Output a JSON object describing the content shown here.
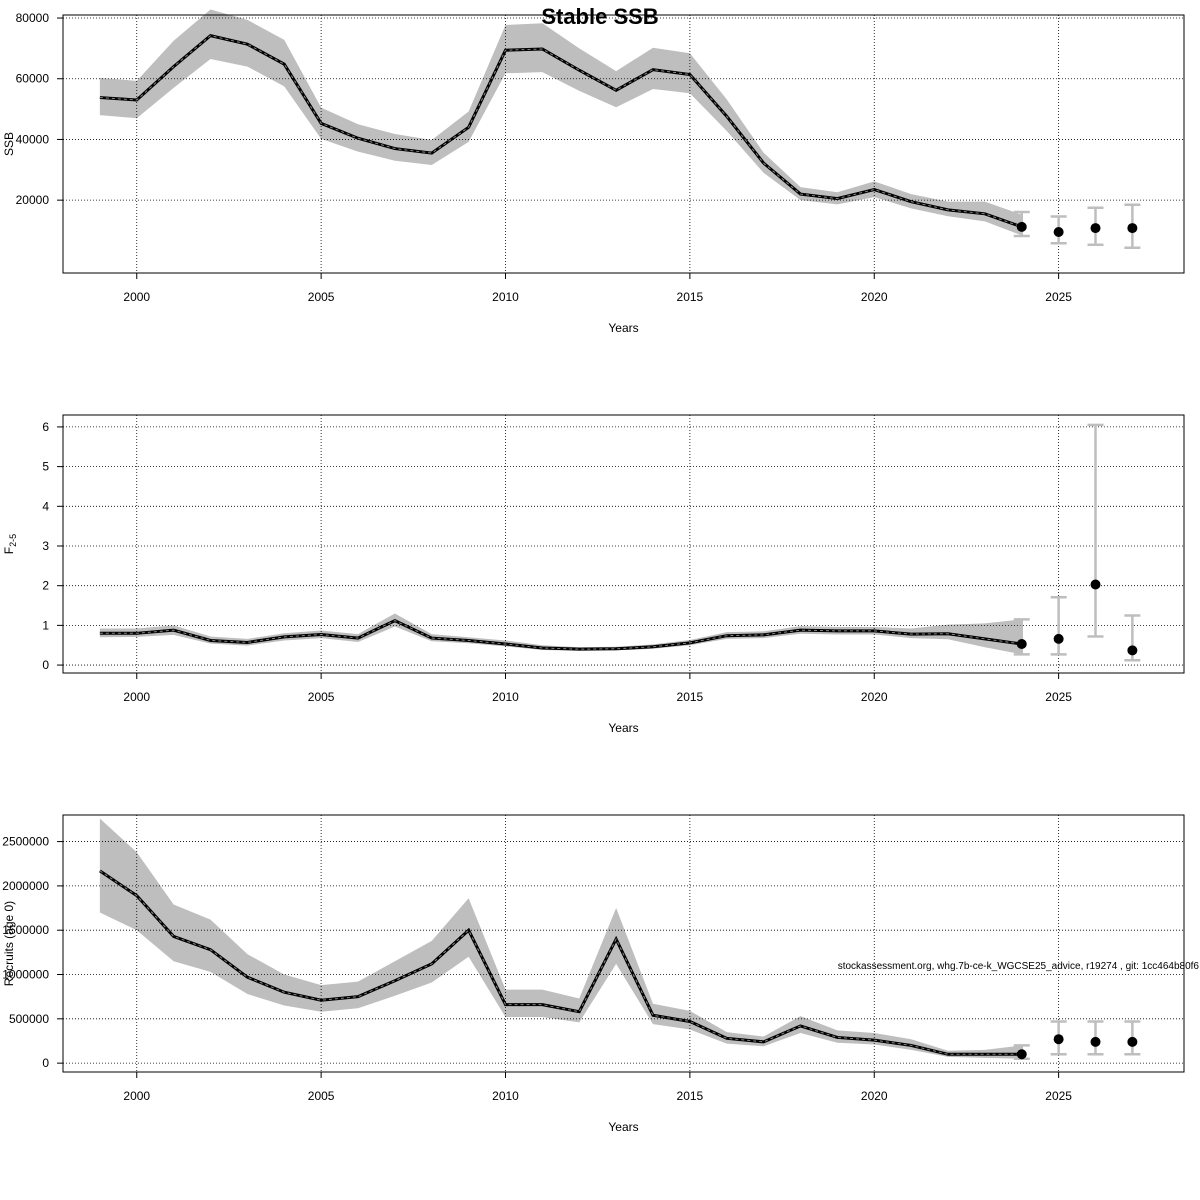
{
  "title": "Stable SSB",
  "footnote": "stockassessment.org, whg.7b-ce-k_WGCSE25_advice, r19274 , git: 1cc464b80f6",
  "colors": {
    "band": "#bebebe",
    "line": "#000000",
    "errorbar": "#bebebe",
    "grid": "#000000"
  },
  "chart_data": [
    {
      "type": "line",
      "ylabel": "SSB",
      "xlabel": "Years",
      "xlim": [
        1998,
        2028.4
      ],
      "ylim": [
        -4000,
        81000
      ],
      "x_ticks": [
        2000,
        2005,
        2010,
        2015,
        2020,
        2025
      ],
      "y_ticks": [
        20000,
        40000,
        60000,
        80000
      ],
      "y_tick_labels": [
        "20000",
        "40000",
        "60000",
        "80000"
      ],
      "series": [
        {
          "x": [
            1999,
            2000,
            2001,
            2002,
            2003,
            2004,
            2005,
            2006,
            2007,
            2008,
            2009,
            2010,
            2011,
            2012,
            2013,
            2014,
            2015,
            2016,
            2017,
            2018,
            2019,
            2020,
            2021,
            2022,
            2023,
            2024
          ],
          "y": [
            53800,
            53000,
            64000,
            74200,
            71400,
            64800,
            45300,
            40400,
            37000,
            35500,
            44000,
            69400,
            69800,
            62800,
            56200,
            63000,
            61400,
            47600,
            32200,
            22000,
            20500,
            23500,
            19500,
            16800,
            15500,
            11200
          ],
          "lower": [
            48000,
            47000,
            57000,
            66500,
            64000,
            57500,
            40200,
            36000,
            33000,
            31600,
            39200,
            61800,
            62200,
            56000,
            50600,
            56600,
            55200,
            42800,
            29000,
            20000,
            18600,
            21000,
            17300,
            14700,
            13000,
            8400
          ],
          "upper": [
            60300,
            59300,
            72500,
            82800,
            79400,
            72800,
            50500,
            45000,
            41800,
            39800,
            49200,
            77700,
            78300,
            70000,
            62500,
            70200,
            68400,
            53200,
            35600,
            24300,
            22600,
            26200,
            22000,
            19500,
            19500,
            15200
          ]
        }
      ],
      "forecast": {
        "x": [
          2024,
          2025,
          2026,
          2027
        ],
        "y": [
          11200,
          9500,
          10800,
          10800
        ],
        "lower": [
          8200,
          5800,
          5300,
          4300
        ],
        "upper": [
          16100,
          14600,
          17500,
          18500
        ]
      }
    },
    {
      "type": "line",
      "ylabel": "F",
      "ylabel_sub": "2-5",
      "xlabel": "Years",
      "xlim": [
        1998,
        2028.4
      ],
      "ylim": [
        -0.2,
        6.3
      ],
      "x_ticks": [
        2000,
        2005,
        2010,
        2015,
        2020,
        2025
      ],
      "y_ticks": [
        0,
        1,
        2,
        3,
        4,
        5,
        6
      ],
      "y_tick_labels": [
        "0",
        "1",
        "2",
        "3",
        "4",
        "5",
        "6"
      ],
      "series": [
        {
          "x": [
            1999,
            2000,
            2001,
            2002,
            2003,
            2004,
            2005,
            2006,
            2007,
            2008,
            2009,
            2010,
            2011,
            2012,
            2013,
            2014,
            2015,
            2016,
            2017,
            2018,
            2019,
            2020,
            2021,
            2022,
            2023,
            2024
          ],
          "y": [
            0.8,
            0.8,
            0.88,
            0.62,
            0.57,
            0.71,
            0.77,
            0.68,
            1.12,
            0.68,
            0.62,
            0.53,
            0.43,
            0.4,
            0.41,
            0.46,
            0.56,
            0.74,
            0.76,
            0.88,
            0.86,
            0.86,
            0.78,
            0.79,
            0.66,
            0.53
          ],
          "lower": [
            0.7,
            0.71,
            0.76,
            0.54,
            0.49,
            0.62,
            0.68,
            0.58,
            0.97,
            0.6,
            0.55,
            0.47,
            0.38,
            0.36,
            0.37,
            0.41,
            0.5,
            0.66,
            0.68,
            0.79,
            0.77,
            0.77,
            0.68,
            0.65,
            0.45,
            0.27
          ],
          "upper": [
            0.92,
            0.92,
            1.0,
            0.72,
            0.66,
            0.8,
            0.87,
            0.78,
            1.3,
            0.78,
            0.7,
            0.62,
            0.5,
            0.45,
            0.46,
            0.52,
            0.63,
            0.83,
            0.85,
            0.98,
            0.96,
            0.96,
            0.92,
            1.02,
            1.05,
            1.15
          ]
        }
      ],
      "forecast": {
        "x": [
          2024,
          2025,
          2026,
          2027
        ],
        "y": [
          0.53,
          0.66,
          2.03,
          0.37
        ],
        "lower": [
          0.27,
          0.27,
          0.72,
          0.12
        ],
        "upper": [
          1.15,
          1.71,
          6.05,
          1.25
        ]
      }
    },
    {
      "type": "line",
      "ylabel": "Recruits (age 0)",
      "xlabel": "Years",
      "xlim": [
        1998,
        2028.4
      ],
      "ylim": [
        -100000,
        2800000
      ],
      "x_ticks": [
        2000,
        2005,
        2010,
        2015,
        2020,
        2025
      ],
      "y_ticks": [
        0,
        500000,
        1000000,
        1500000,
        2000000,
        2500000
      ],
      "y_tick_labels": [
        "0",
        "500000",
        "1000000",
        "1500000",
        "2000000",
        "2500000"
      ],
      "series": [
        {
          "x": [
            1999,
            2000,
            2001,
            2002,
            2003,
            2004,
            2005,
            2006,
            2007,
            2008,
            2009,
            2010,
            2011,
            2012,
            2013,
            2014,
            2015,
            2016,
            2017,
            2018,
            2019,
            2020,
            2021,
            2022,
            2023,
            2024
          ],
          "y": [
            2170000,
            1890000,
            1430000,
            1280000,
            970000,
            800000,
            710000,
            750000,
            930000,
            1120000,
            1500000,
            660000,
            660000,
            580000,
            1400000,
            540000,
            470000,
            280000,
            240000,
            420000,
            290000,
            260000,
            200000,
            100000,
            100000,
            100000
          ],
          "lower": [
            1700000,
            1500000,
            1150000,
            1030000,
            780000,
            650000,
            580000,
            620000,
            760000,
            910000,
            1200000,
            520000,
            520000,
            460000,
            1120000,
            440000,
            380000,
            220000,
            190000,
            340000,
            230000,
            210000,
            150000,
            70000,
            60000,
            50000
          ],
          "upper": [
            2760000,
            2380000,
            1790000,
            1620000,
            1230000,
            1000000,
            880000,
            920000,
            1150000,
            1380000,
            1860000,
            830000,
            830000,
            730000,
            1750000,
            670000,
            590000,
            350000,
            300000,
            530000,
            370000,
            340000,
            270000,
            140000,
            150000,
            200000
          ]
        }
      ],
      "forecast": {
        "x": [
          2024,
          2025,
          2026,
          2027
        ],
        "y": [
          100000,
          270000,
          240000,
          240000
        ],
        "lower": [
          50000,
          100000,
          100000,
          100000
        ],
        "upper": [
          200000,
          470000,
          470000,
          470000
        ]
      }
    }
  ]
}
